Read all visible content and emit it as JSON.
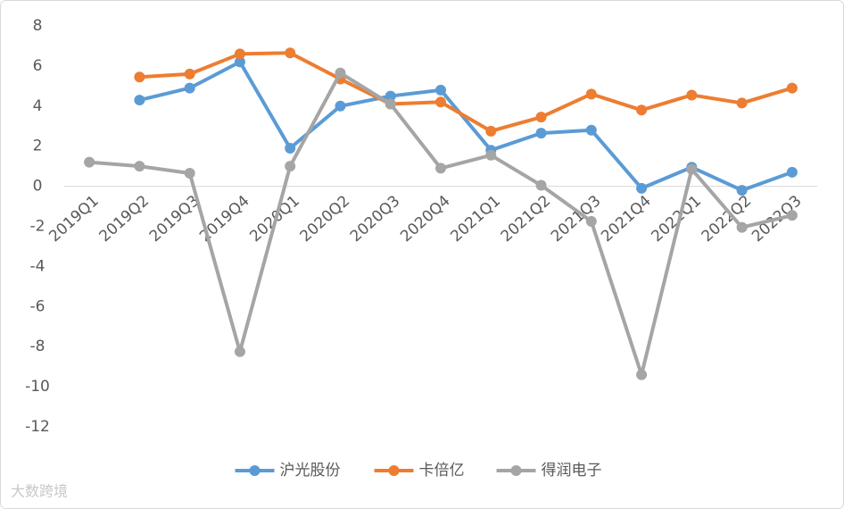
{
  "chart_data": {
    "type": "line",
    "categories": [
      "2019Q1",
      "2019Q2",
      "2019Q3",
      "2019Q4",
      "2020Q1",
      "2020Q2",
      "2020Q3",
      "2020Q4",
      "2021Q1",
      "2021Q2",
      "2021Q3",
      "2021Q4",
      "2022Q1",
      "2022Q2",
      "2022Q3"
    ],
    "series": [
      {
        "name": "沪光股份",
        "color": "#5b9bd5",
        "values": [
          null,
          4.3,
          4.9,
          6.2,
          1.9,
          4.0,
          4.5,
          4.8,
          1.8,
          2.65,
          2.8,
          -0.1,
          0.95,
          -0.2,
          0.7
        ]
      },
      {
        "name": "卡倍亿",
        "color": "#ed7d31",
        "values": [
          null,
          5.45,
          5.6,
          6.6,
          6.65,
          5.35,
          4.1,
          4.2,
          2.75,
          3.45,
          4.6,
          3.8,
          4.55,
          4.15,
          4.9
        ]
      },
      {
        "name": "得润电子",
        "color": "#a5a5a5",
        "values": [
          1.2,
          1.0,
          0.65,
          -8.25,
          1.0,
          5.65,
          4.1,
          0.9,
          1.55,
          0.05,
          -1.75,
          -9.4,
          0.85,
          -2.05,
          -1.45
        ]
      }
    ],
    "ylim": [
      -12,
      8
    ],
    "yticks": [
      -12,
      -10,
      -8,
      -6,
      -4,
      -2,
      0,
      2,
      4,
      6,
      8
    ],
    "grid": false,
    "legend": "bottom"
  },
  "watermark": "大数跨境"
}
